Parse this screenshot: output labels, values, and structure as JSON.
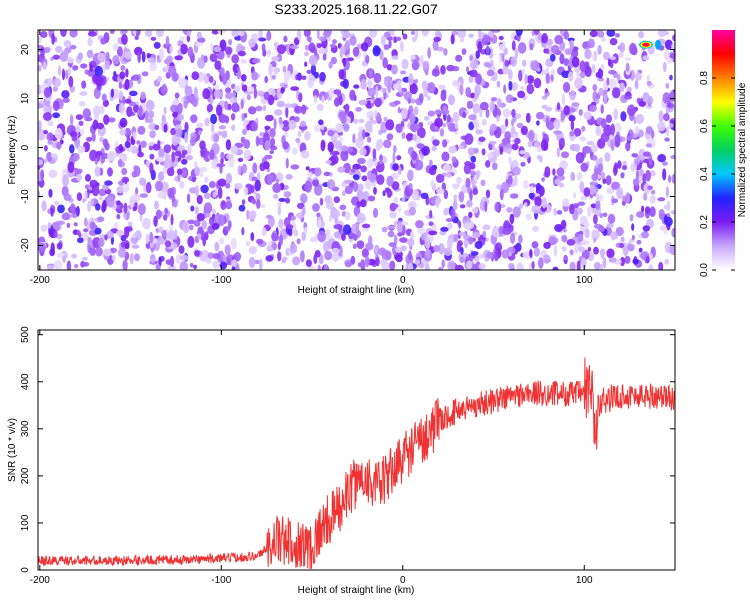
{
  "title": "S233.2025.168.11.22.G07",
  "chart_data": [
    {
      "type": "heatmap",
      "xlabel": "Height of straight line (km)",
      "ylabel": "Frequency (Hz)",
      "xlim": [
        -201,
        150
      ],
      "ylim": [
        -25,
        24
      ],
      "xticks": [
        -200,
        -100,
        0,
        100
      ],
      "yticks": [
        -20,
        -10,
        0,
        10,
        20
      ],
      "colorbar": {
        "label": "Normalized spectral amplitude",
        "range": [
          0,
          1
        ],
        "ticks": [
          0.0,
          0.2,
          0.4,
          0.6,
          0.8
        ],
        "tick_labels": [
          "0.0",
          "0.2",
          "0.4",
          "0.6",
          "0.8"
        ],
        "colormap": [
          "#ffffff",
          "#c8a8ff",
          "#7a1cf0",
          "#2222ff",
          "#00c8ff",
          "#00d060",
          "#40ff00",
          "#ffff00",
          "#ff8000",
          "#ff0000",
          "#ff00a0"
        ]
      },
      "background_level": 0.1,
      "peak": {
        "x": 134,
        "y": 21,
        "value": 1.0
      },
      "grid": false
    },
    {
      "type": "line",
      "xlabel": "Height of straight line (km)",
      "ylabel": "SNR (10 * v/v)",
      "xlim": [
        -201,
        150
      ],
      "ylim": [
        0,
        510
      ],
      "xticks": [
        -200,
        -100,
        0,
        100
      ],
      "yticks": [
        0,
        100,
        200,
        300,
        400,
        500
      ],
      "grid": false,
      "series": [
        {
          "color": "#f03232",
          "x": [
            -201,
            -180,
            -160,
            -140,
            -120,
            -100,
            -80,
            -70,
            -60,
            -50,
            -45,
            -40,
            -35,
            -30,
            -25,
            -20,
            -15,
            -10,
            -5,
            0,
            10,
            20,
            30,
            40,
            50,
            60,
            70,
            80,
            90,
            100,
            103,
            106,
            110,
            120,
            130,
            140,
            150
          ],
          "values": [
            20,
            20,
            20,
            21,
            22,
            25,
            30,
            65,
            55,
            50,
            90,
            110,
            130,
            165,
            190,
            200,
            175,
            190,
            215,
            240,
            275,
            315,
            340,
            350,
            360,
            370,
            375,
            375,
            375,
            375,
            400,
            300,
            360,
            370,
            370,
            370,
            365
          ]
        }
      ]
    }
  ]
}
